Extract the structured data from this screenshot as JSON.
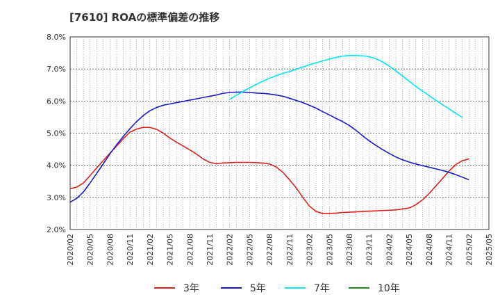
{
  "chart_data": {
    "type": "line",
    "title": "[7610]  ROAの標準偏差の推移",
    "xlabel": "",
    "ylabel": "",
    "ylim": [
      2.0,
      8.0
    ],
    "y_ticks": [
      "2.0%",
      "3.0%",
      "4.0%",
      "5.0%",
      "6.0%",
      "7.0%",
      "8.0%"
    ],
    "x_ticks": [
      "2020/02",
      "2020/05",
      "2020/08",
      "2020/11",
      "2021/02",
      "2021/05",
      "2021/08",
      "2021/11",
      "2022/02",
      "2022/05",
      "2022/08",
      "2022/11",
      "2023/02",
      "2023/05",
      "2023/08",
      "2023/11",
      "2024/02",
      "2024/05",
      "2024/08",
      "2024/11",
      "2025/02",
      "2025/05"
    ],
    "x_range": [
      "2020/02",
      "2025/05"
    ],
    "grid": true,
    "legend_position": "bottom",
    "series": [
      {
        "name": "3年",
        "color": "#e02020",
        "points": [
          [
            "2020/02",
            3.27
          ],
          [
            "2020/03",
            3.32
          ],
          [
            "2020/04",
            3.45
          ],
          [
            "2020/05",
            3.68
          ],
          [
            "2020/06",
            3.92
          ],
          [
            "2020/07",
            4.15
          ],
          [
            "2020/08",
            4.38
          ],
          [
            "2020/09",
            4.6
          ],
          [
            "2020/10",
            4.83
          ],
          [
            "2020/11",
            5.03
          ],
          [
            "2020/12",
            5.13
          ],
          [
            "2021/01",
            5.18
          ],
          [
            "2021/02",
            5.18
          ],
          [
            "2021/03",
            5.12
          ],
          [
            "2021/04",
            5.0
          ],
          [
            "2021/05",
            4.85
          ],
          [
            "2021/06",
            4.72
          ],
          [
            "2021/07",
            4.6
          ],
          [
            "2021/08",
            4.48
          ],
          [
            "2021/09",
            4.35
          ],
          [
            "2021/10",
            4.2
          ],
          [
            "2021/11",
            4.09
          ],
          [
            "2021/12",
            4.05
          ],
          [
            "2022/01",
            4.07
          ],
          [
            "2022/02",
            4.08
          ],
          [
            "2022/03",
            4.09
          ],
          [
            "2022/04",
            4.09
          ],
          [
            "2022/05",
            4.09
          ],
          [
            "2022/06",
            4.08
          ],
          [
            "2022/07",
            4.07
          ],
          [
            "2022/08",
            4.04
          ],
          [
            "2022/09",
            3.95
          ],
          [
            "2022/10",
            3.78
          ],
          [
            "2022/11",
            3.55
          ],
          [
            "2022/12",
            3.3
          ],
          [
            "2023/01",
            3.0
          ],
          [
            "2023/02",
            2.73
          ],
          [
            "2023/03",
            2.56
          ],
          [
            "2023/04",
            2.5
          ],
          [
            "2023/05",
            2.5
          ],
          [
            "2023/06",
            2.51
          ],
          [
            "2023/07",
            2.53
          ],
          [
            "2023/08",
            2.54
          ],
          [
            "2023/09",
            2.55
          ],
          [
            "2023/10",
            2.56
          ],
          [
            "2023/11",
            2.57
          ],
          [
            "2023/12",
            2.58
          ],
          [
            "2024/01",
            2.59
          ],
          [
            "2024/02",
            2.6
          ],
          [
            "2024/03",
            2.61
          ],
          [
            "2024/04",
            2.64
          ],
          [
            "2024/05",
            2.67
          ],
          [
            "2024/06",
            2.77
          ],
          [
            "2024/07",
            2.92
          ],
          [
            "2024/08",
            3.12
          ],
          [
            "2024/09",
            3.35
          ],
          [
            "2024/10",
            3.58
          ],
          [
            "2024/11",
            3.82
          ],
          [
            "2024/12",
            4.02
          ],
          [
            "2025/01",
            4.14
          ],
          [
            "2025/02",
            4.2
          ]
        ]
      },
      {
        "name": "5年",
        "color": "#1a1acc",
        "points": [
          [
            "2020/02",
            2.85
          ],
          [
            "2020/03",
            2.97
          ],
          [
            "2020/04",
            3.17
          ],
          [
            "2020/05",
            3.45
          ],
          [
            "2020/06",
            3.75
          ],
          [
            "2020/07",
            4.05
          ],
          [
            "2020/08",
            4.36
          ],
          [
            "2020/09",
            4.64
          ],
          [
            "2020/10",
            4.9
          ],
          [
            "2020/11",
            5.14
          ],
          [
            "2020/12",
            5.36
          ],
          [
            "2021/01",
            5.55
          ],
          [
            "2021/02",
            5.7
          ],
          [
            "2021/03",
            5.8
          ],
          [
            "2021/04",
            5.87
          ],
          [
            "2021/05",
            5.91
          ],
          [
            "2021/06",
            5.95
          ],
          [
            "2021/07",
            5.99
          ],
          [
            "2021/08",
            6.03
          ],
          [
            "2021/09",
            6.07
          ],
          [
            "2021/10",
            6.11
          ],
          [
            "2021/11",
            6.15
          ],
          [
            "2021/12",
            6.19
          ],
          [
            "2022/01",
            6.24
          ],
          [
            "2022/02",
            6.27
          ],
          [
            "2022/03",
            6.28
          ],
          [
            "2022/04",
            6.28
          ],
          [
            "2022/05",
            6.27
          ],
          [
            "2022/06",
            6.25
          ],
          [
            "2022/07",
            6.24
          ],
          [
            "2022/08",
            6.22
          ],
          [
            "2022/09",
            6.19
          ],
          [
            "2022/10",
            6.15
          ],
          [
            "2022/11",
            6.09
          ],
          [
            "2022/12",
            6.02
          ],
          [
            "2023/01",
            5.95
          ],
          [
            "2023/02",
            5.87
          ],
          [
            "2023/03",
            5.78
          ],
          [
            "2023/04",
            5.67
          ],
          [
            "2023/05",
            5.57
          ],
          [
            "2023/06",
            5.46
          ],
          [
            "2023/07",
            5.36
          ],
          [
            "2023/08",
            5.24
          ],
          [
            "2023/09",
            5.09
          ],
          [
            "2023/10",
            4.92
          ],
          [
            "2023/11",
            4.76
          ],
          [
            "2023/12",
            4.62
          ],
          [
            "2024/01",
            4.49
          ],
          [
            "2024/02",
            4.37
          ],
          [
            "2024/03",
            4.26
          ],
          [
            "2024/04",
            4.17
          ],
          [
            "2024/05",
            4.1
          ],
          [
            "2024/06",
            4.04
          ],
          [
            "2024/07",
            3.99
          ],
          [
            "2024/08",
            3.94
          ],
          [
            "2024/09",
            3.89
          ],
          [
            "2024/10",
            3.84
          ],
          [
            "2024/11",
            3.78
          ],
          [
            "2024/12",
            3.71
          ],
          [
            "2025/01",
            3.63
          ],
          [
            "2025/02",
            3.55
          ]
        ]
      },
      {
        "name": "7年",
        "color": "#00e5f0",
        "points": [
          [
            "2022/02",
            6.05
          ],
          [
            "2022/03",
            6.18
          ],
          [
            "2022/04",
            6.3
          ],
          [
            "2022/05",
            6.41
          ],
          [
            "2022/06",
            6.52
          ],
          [
            "2022/07",
            6.62
          ],
          [
            "2022/08",
            6.71
          ],
          [
            "2022/09",
            6.79
          ],
          [
            "2022/10",
            6.86
          ],
          [
            "2022/11",
            6.92
          ],
          [
            "2022/12",
            6.99
          ],
          [
            "2023/01",
            7.06
          ],
          [
            "2023/02",
            7.13
          ],
          [
            "2023/03",
            7.19
          ],
          [
            "2023/04",
            7.25
          ],
          [
            "2023/05",
            7.31
          ],
          [
            "2023/06",
            7.36
          ],
          [
            "2023/07",
            7.4
          ],
          [
            "2023/08",
            7.42
          ],
          [
            "2023/09",
            7.42
          ],
          [
            "2023/10",
            7.41
          ],
          [
            "2023/11",
            7.38
          ],
          [
            "2023/12",
            7.32
          ],
          [
            "2024/01",
            7.22
          ],
          [
            "2024/02",
            7.09
          ],
          [
            "2024/03",
            6.94
          ],
          [
            "2024/04",
            6.78
          ],
          [
            "2024/05",
            6.62
          ],
          [
            "2024/06",
            6.46
          ],
          [
            "2024/07",
            6.31
          ],
          [
            "2024/08",
            6.17
          ],
          [
            "2024/09",
            6.03
          ],
          [
            "2024/10",
            5.89
          ],
          [
            "2024/11",
            5.76
          ],
          [
            "2024/12",
            5.62
          ],
          [
            "2025/01",
            5.49
          ]
        ]
      },
      {
        "name": "10年",
        "color": "#228b22",
        "points": []
      }
    ]
  }
}
